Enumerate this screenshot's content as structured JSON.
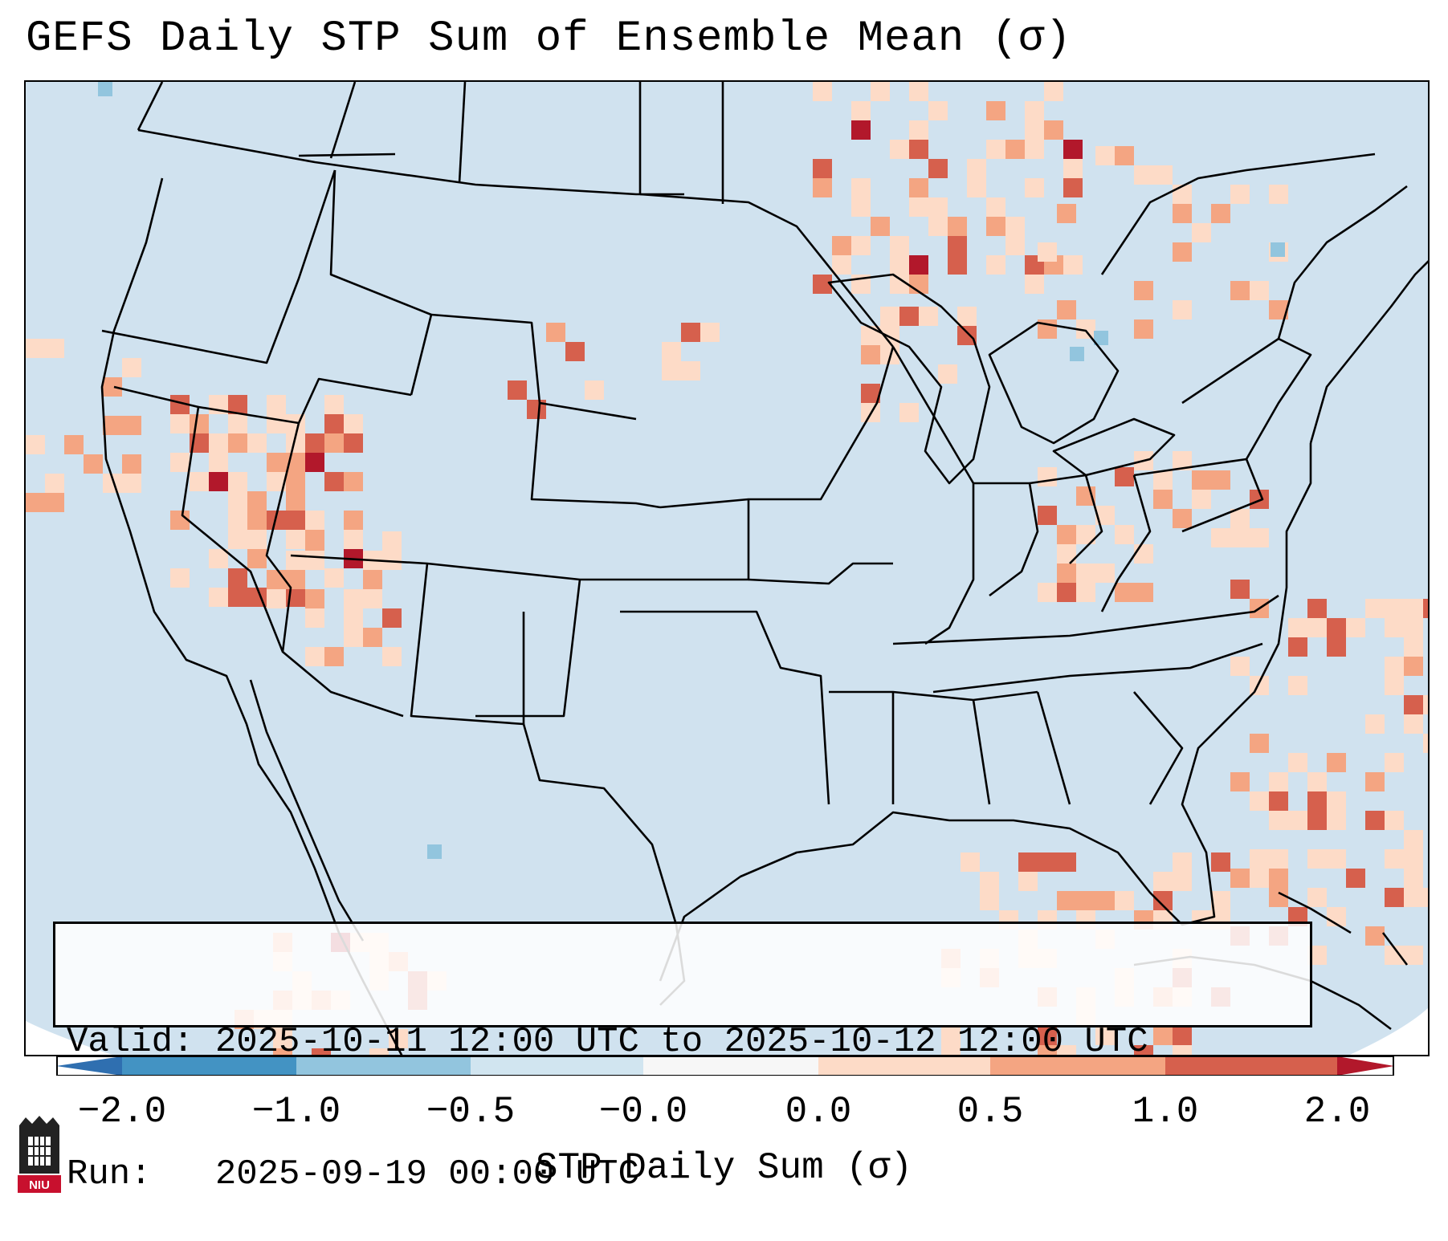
{
  "title": "GEFS Daily STP Sum of Ensemble Mean (σ)",
  "map": {
    "region": "Contiguous United States",
    "ocean_color": "#d0e2ef",
    "land_color": "#d0e2ef",
    "border_color": "#000000"
  },
  "info": {
    "valid_line": "Valid: 2025-10-11 12:00 UTC to 2025-10-12 12:00 UTC",
    "run_line": "Run:   2025-09-19 00:00 UTC"
  },
  "colorbar": {
    "label": "STP Daily Sum (σ)",
    "ticks": [
      "−2.0",
      "−1.0",
      "−0.5",
      "−0.0",
      "0.0",
      "0.5",
      "1.0",
      "2.0"
    ],
    "bins": [
      {
        "color": "#2f6fb0"
      },
      {
        "color": "#4393c3"
      },
      {
        "color": "#92c5de"
      },
      {
        "color": "#d1e5f0"
      },
      {
        "color": "#f7f7f7"
      },
      {
        "color": "#fddbc7"
      },
      {
        "color": "#f4a582"
      },
      {
        "color": "#d6604d"
      },
      {
        "color": "#b2182b"
      }
    ]
  },
  "anomaly_regions": [
    {
      "name": "Great Basin / Nevada",
      "level": "high"
    },
    {
      "name": "Southern Nevada / Arizona",
      "level": "high"
    },
    {
      "name": "Upper Midwest / Wisconsin",
      "level": "moderate"
    },
    {
      "name": "Ohio",
      "level": "high"
    },
    {
      "name": "Southern Ontario / Quebec",
      "level": "high"
    },
    {
      "name": "Western Atlantic",
      "level": "moderate"
    },
    {
      "name": "Gulf of Mexico / Cuba",
      "level": "moderate"
    },
    {
      "name": "Northern Mexico",
      "level": "high"
    }
  ],
  "logo": {
    "text": "NIU"
  }
}
